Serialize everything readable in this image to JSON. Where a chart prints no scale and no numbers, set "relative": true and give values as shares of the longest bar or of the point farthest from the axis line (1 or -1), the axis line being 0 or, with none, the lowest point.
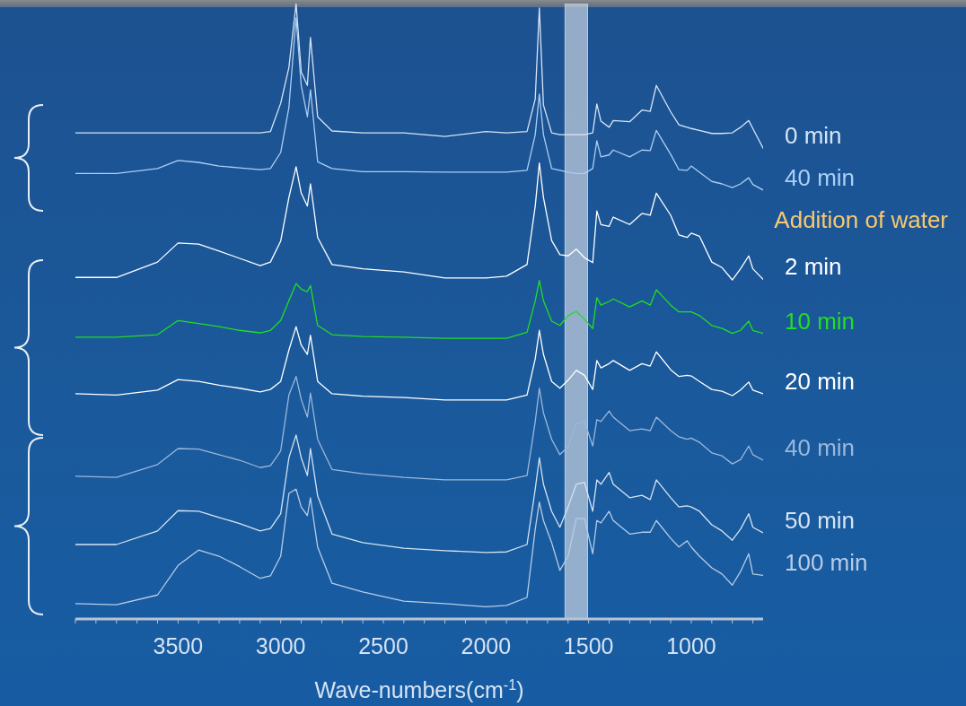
{
  "chart_data": {
    "type": "line",
    "relative": true,
    "xlabel": "Wave-numbers(cm$^{-1}$)",
    "xlim": [
      4000,
      650
    ],
    "xticks": [
      {
        "value": 4000,
        "label": null
      },
      {
        "value": 3900,
        "label": null
      },
      {
        "value": 3800,
        "label": null
      },
      {
        "value": 3700,
        "label": null
      },
      {
        "value": 3600,
        "label": null
      },
      3500,
      {
        "value": 3400,
        "label": null
      },
      {
        "value": 3300,
        "label": null
      },
      {
        "value": 3200,
        "label": null
      },
      {
        "value": 3100,
        "label": null
      },
      3000,
      {
        "value": 2900,
        "label": null
      },
      {
        "value": 2800,
        "label": null
      },
      {
        "value": 2700,
        "label": null
      },
      {
        "value": 2600,
        "label": null
      },
      2500,
      {
        "value": 2400,
        "label": null
      },
      {
        "value": 2300,
        "label": null
      },
      {
        "value": 2200,
        "label": null
      },
      {
        "value": 2100,
        "label": null
      },
      2000,
      {
        "value": 1900,
        "label": null
      },
      {
        "value": 1800,
        "label": null
      },
      {
        "value": 1700,
        "label": null
      },
      {
        "value": 1600,
        "label": null
      },
      1500,
      {
        "value": 1400,
        "label": null
      },
      {
        "value": 1300,
        "label": null
      },
      {
        "value": 1200,
        "label": null
      },
      {
        "value": 1100,
        "label": null
      },
      1000,
      {
        "value": 900,
        "label": null
      },
      {
        "value": 800,
        "label": null
      },
      {
        "value": 700,
        "label": null
      }
    ],
    "x": [
      4000,
      3800,
      3600,
      3500,
      3400,
      3300,
      3200,
      3100,
      3050,
      3000,
      2960,
      2925,
      2900,
      2870,
      2855,
      2820,
      2750,
      2600,
      2400,
      2200,
      2000,
      1900,
      1800,
      1760,
      1740,
      1720,
      1680,
      1640,
      1600,
      1560,
      1520,
      1480,
      1460,
      1440,
      1400,
      1380,
      1300,
      1240,
      1200,
      1170,
      1100,
      1060,
      1020,
      1000,
      960,
      900,
      850,
      800,
      760,
      720,
      700,
      650
    ],
    "series": [
      {
        "name": "0 min",
        "color": "#d6e5f6",
        "values": [
          0.79,
          0.79,
          0.79,
          0.79,
          0.79,
          0.79,
          0.79,
          0.79,
          0.792,
          0.838,
          0.896,
          1,
          0.889,
          0.867,
          0.945,
          0.816,
          0.793,
          0.79,
          0.79,
          0.784,
          0.792,
          0.79,
          0.792,
          0.845,
          0.993,
          0.835,
          0.79,
          0.787,
          0.787,
          0.787,
          0.787,
          0.79,
          0.837,
          0.809,
          0.799,
          0.81,
          0.808,
          0.827,
          0.825,
          0.867,
          0.824,
          0.803,
          0.799,
          0.797,
          0.794,
          0.789,
          0.789,
          0.79,
          0.799,
          0.81,
          0.797,
          0.765
        ]
      },
      {
        "name": "40 min",
        "color": "#a9cff5",
        "values": [
          0.724,
          0.724,
          0.732,
          0.745,
          0.742,
          0.736,
          0.733,
          0.73,
          0.732,
          0.758,
          0.831,
          0.977,
          0.867,
          0.816,
          0.86,
          0.743,
          0.732,
          0.727,
          0.727,
          0.726,
          0.726,
          0.726,
          0.729,
          0.787,
          0.853,
          0.787,
          0.732,
          0.729,
          0.726,
          0.724,
          0.724,
          0.732,
          0.777,
          0.751,
          0.754,
          0.762,
          0.751,
          0.762,
          0.761,
          0.794,
          0.755,
          0.73,
          0.729,
          0.736,
          0.726,
          0.711,
          0.707,
          0.701,
          0.707,
          0.717,
          0.706,
          0.697
        ]
      },
      {
        "name": "2 min",
        "color": "#ffffff",
        "values": [
          0.555,
          0.555,
          0.58,
          0.611,
          0.609,
          0.598,
          0.586,
          0.574,
          0.58,
          0.614,
          0.685,
          0.735,
          0.692,
          0.671,
          0.707,
          0.62,
          0.576,
          0.569,
          0.564,
          0.554,
          0.554,
          0.557,
          0.576,
          0.671,
          0.741,
          0.685,
          0.615,
          0.592,
          0.59,
          0.601,
          0.587,
          0.579,
          0.663,
          0.641,
          0.638,
          0.653,
          0.641,
          0.659,
          0.656,
          0.692,
          0.656,
          0.624,
          0.62,
          0.627,
          0.622,
          0.58,
          0.571,
          0.551,
          0.569,
          0.59,
          0.569,
          0.552
        ]
      },
      {
        "name": "10 min",
        "color": "#22dd22",
        "values": [
          0.458,
          0.458,
          0.462,
          0.485,
          0.48,
          0.475,
          0.469,
          0.465,
          0.469,
          0.485,
          0.517,
          0.545,
          0.536,
          0.532,
          0.542,
          0.477,
          0.462,
          0.459,
          0.458,
          0.456,
          0.456,
          0.456,
          0.466,
          0.517,
          0.55,
          0.517,
          0.484,
          0.477,
          0.493,
          0.5,
          0.487,
          0.472,
          0.522,
          0.51,
          0.516,
          0.52,
          0.507,
          0.517,
          0.51,
          0.535,
          0.51,
          0.499,
          0.499,
          0.499,
          0.493,
          0.477,
          0.472,
          0.464,
          0.469,
          0.484,
          0.469,
          0.464
        ]
      },
      {
        "name": "20 min",
        "color": "#ffffff",
        "values": [
          0.366,
          0.364,
          0.372,
          0.389,
          0.386,
          0.38,
          0.375,
          0.369,
          0.373,
          0.386,
          0.437,
          0.475,
          0.445,
          0.43,
          0.461,
          0.386,
          0.366,
          0.362,
          0.36,
          0.356,
          0.356,
          0.356,
          0.364,
          0.423,
          0.469,
          0.43,
          0.386,
          0.375,
          0.388,
          0.404,
          0.396,
          0.373,
          0.42,
          0.408,
          0.415,
          0.42,
          0.404,
          0.415,
          0.411,
          0.434,
          0.405,
          0.394,
          0.396,
          0.395,
          0.386,
          0.373,
          0.37,
          0.363,
          0.372,
          0.385,
          0.372,
          0.366
        ]
      },
      {
        "name": "40 min",
        "color": "#9ab8dc",
        "values": [
          0.232,
          0.23,
          0.251,
          0.277,
          0.276,
          0.267,
          0.258,
          0.246,
          0.249,
          0.273,
          0.364,
          0.394,
          0.357,
          0.328,
          0.367,
          0.292,
          0.243,
          0.236,
          0.23,
          0.226,
          0.226,
          0.226,
          0.233,
          0.321,
          0.375,
          0.335,
          0.292,
          0.267,
          0.28,
          0.318,
          0.321,
          0.281,
          0.324,
          0.321,
          0.338,
          0.328,
          0.306,
          0.309,
          0.306,
          0.328,
          0.306,
          0.296,
          0.292,
          0.294,
          0.287,
          0.27,
          0.265,
          0.252,
          0.259,
          0.281,
          0.267,
          0.258
        ]
      },
      {
        "name": "50 min",
        "color": "#d5e3f2",
        "values": [
          0.121,
          0.121,
          0.143,
          0.176,
          0.175,
          0.165,
          0.155,
          0.143,
          0.147,
          0.171,
          0.262,
          0.299,
          0.262,
          0.233,
          0.277,
          0.2,
          0.138,
          0.124,
          0.115,
          0.111,
          0.108,
          0.109,
          0.121,
          0.211,
          0.262,
          0.219,
          0.175,
          0.149,
          0.182,
          0.219,
          0.222,
          0.175,
          0.226,
          0.219,
          0.238,
          0.219,
          0.197,
          0.201,
          0.194,
          0.226,
          0.197,
          0.182,
          0.184,
          0.182,
          0.175,
          0.153,
          0.143,
          0.128,
          0.146,
          0.171,
          0.149,
          0.14
        ]
      },
      {
        "name": "100 min",
        "color": "#b7cce8",
        "values": [
          0.025,
          0.023,
          0.039,
          0.087,
          0.112,
          0.102,
          0.085,
          0.066,
          0.07,
          0.102,
          0.204,
          0.211,
          0.182,
          0.168,
          0.197,
          0.117,
          0.058,
          0.044,
          0.029,
          0.025,
          0.02,
          0.022,
          0.035,
          0.146,
          0.19,
          0.16,
          0.124,
          0.079,
          0.102,
          0.163,
          0.163,
          0.106,
          0.16,
          0.156,
          0.175,
          0.16,
          0.138,
          0.141,
          0.141,
          0.16,
          0.131,
          0.117,
          0.127,
          0.117,
          0.102,
          0.083,
          0.073,
          0.055,
          0.077,
          0.106,
          0.073,
          0.071
        ]
      }
    ],
    "bands": [
      {
        "axis": "x",
        "from": 1615,
        "to": 1505,
        "color": "#c9d3e0"
      }
    ],
    "annotations": [
      "Addition of water"
    ]
  }
}
